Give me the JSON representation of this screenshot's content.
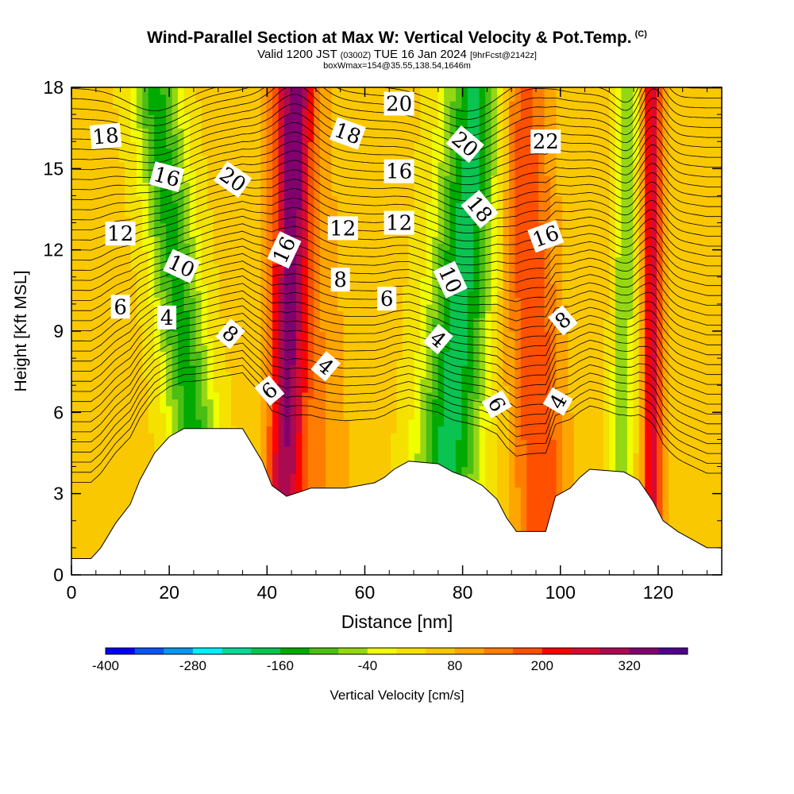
{
  "header": {
    "title": "Wind-Parallel Section at Max W: Vertical Velocity & Pot.Temp.",
    "copyright": "(C)",
    "valid_prefix": "Valid 1200 JST",
    "valid_utc": "(0300Z)",
    "valid_date": "TUE 16 Jan 2024",
    "forecast_info": "[9hrFcst@2142z]",
    "box_info": "boxWmax=154@35.55,138.54,1646m"
  },
  "chart_data": {
    "type": "heatmap",
    "xlabel": "Distance [nm]",
    "ylabel": "Height [Kft MSL]",
    "xlim": [
      0,
      133
    ],
    "ylim": [
      0,
      18
    ],
    "x_ticks": [
      "0",
      "20",
      "40",
      "60",
      "80",
      "100",
      "120"
    ],
    "y_ticks": [
      "0",
      "3",
      "6",
      "9",
      "12",
      "15",
      "18"
    ],
    "colorbar": {
      "label": "Vertical Velocity [cm/s]",
      "tick_labels": [
        "-400",
        "-280",
        "-160",
        "-40",
        "80",
        "200",
        "320"
      ],
      "tick_values": [
        -400,
        -280,
        -160,
        -40,
        80,
        200,
        320
      ],
      "bins": [
        -400,
        -360,
        -320,
        -280,
        -240,
        -200,
        -160,
        -120,
        -80,
        -40,
        0,
        40,
        80,
        120,
        160,
        200,
        240,
        280,
        320,
        360
      ],
      "colors": [
        "#0000ff",
        "#0a55f0",
        "#0a96f0",
        "#00f0ff",
        "#0ad796",
        "#0ac350",
        "#00aa00",
        "#4bbe14",
        "#96d714",
        "#f0ff00",
        "#f5e100",
        "#fac800",
        "#ffa500",
        "#ff7d00",
        "#ff5000",
        "#ff0000",
        "#d70a32",
        "#aa0a50",
        "#82006e",
        "#50008c"
      ]
    },
    "terrain_kft": [
      [
        0,
        0.6
      ],
      [
        4,
        0.6
      ],
      [
        6,
        1.0
      ],
      [
        9,
        1.9
      ],
      [
        12,
        2.6
      ],
      [
        14,
        3.5
      ],
      [
        17,
        4.5
      ],
      [
        20,
        5.1
      ],
      [
        23,
        5.4
      ],
      [
        35,
        5.4
      ],
      [
        37,
        4.8
      ],
      [
        39,
        4.2
      ],
      [
        41,
        3.3
      ],
      [
        44,
        2.9
      ],
      [
        49,
        3.2
      ],
      [
        56,
        3.2
      ],
      [
        62,
        3.4
      ],
      [
        64,
        3.6
      ],
      [
        66,
        3.9
      ],
      [
        69,
        4.2
      ],
      [
        75,
        4.1
      ],
      [
        78,
        3.8
      ],
      [
        81,
        3.6
      ],
      [
        84,
        3.3
      ],
      [
        87,
        2.8
      ],
      [
        89,
        2.1
      ],
      [
        91,
        1.6
      ],
      [
        97,
        1.6
      ],
      [
        99,
        2.9
      ],
      [
        102,
        3.2
      ],
      [
        104,
        3.6
      ],
      [
        106,
        3.9
      ],
      [
        113,
        3.8
      ],
      [
        116,
        3.5
      ],
      [
        119,
        2.7
      ],
      [
        121,
        2.0
      ],
      [
        124,
        1.6
      ],
      [
        127,
        1.3
      ],
      [
        130,
        1.0
      ],
      [
        133,
        1.0
      ]
    ],
    "vertical_velocity_features": [
      {
        "name": "descent",
        "x_base": 28,
        "tilt": -0.6,
        "width": 5,
        "amp": -185
      },
      {
        "name": "ascent",
        "x_base": 43,
        "tilt": 0.15,
        "width": 3.5,
        "amp": 230
      },
      {
        "name": "ascent",
        "x_base": 51,
        "tilt": -0.3,
        "width": 7,
        "amp": 80
      },
      {
        "name": "descent",
        "x_base": 75,
        "tilt": 0.45,
        "width": 6.5,
        "amp": -230
      },
      {
        "name": "ascent",
        "x_base": 97,
        "tilt": -0.3,
        "width": 5.5,
        "amp": 150
      },
      {
        "name": "descent",
        "x_base": 112,
        "tilt": 0.1,
        "width": 2.2,
        "amp": -130
      },
      {
        "name": "ascent",
        "x_base": 119,
        "tilt": 0.0,
        "width": 2.0,
        "amp": 220
      }
    ],
    "potential_temperature_labels": [
      {
        "text": "18",
        "x": 7,
        "y": 16.2,
        "rot": -5
      },
      {
        "text": "16",
        "x": 19.5,
        "y": 14.7,
        "rot": 15
      },
      {
        "text": "20",
        "x": 33,
        "y": 14.6,
        "rot": 35
      },
      {
        "text": "12",
        "x": 10,
        "y": 12.6,
        "rot": 0
      },
      {
        "text": "10",
        "x": 22.5,
        "y": 11.4,
        "rot": 25
      },
      {
        "text": "6",
        "x": 10,
        "y": 9.9,
        "rot": 0
      },
      {
        "text": "4",
        "x": 19.5,
        "y": 9.5,
        "rot": 0
      },
      {
        "text": "8",
        "x": 32.5,
        "y": 8.9,
        "rot": 40
      },
      {
        "text": "6",
        "x": 40.5,
        "y": 6.8,
        "rot": -40
      },
      {
        "text": "16",
        "x": 43.5,
        "y": 12.0,
        "rot": -65
      },
      {
        "text": "4",
        "x": 52,
        "y": 7.7,
        "rot": 40
      },
      {
        "text": "8",
        "x": 55,
        "y": 10.9,
        "rot": 0
      },
      {
        "text": "12",
        "x": 55.5,
        "y": 12.8,
        "rot": 0
      },
      {
        "text": "18",
        "x": 56.5,
        "y": 16.3,
        "rot": 20
      },
      {
        "text": "20",
        "x": 67,
        "y": 17.4,
        "rot": 0
      },
      {
        "text": "16",
        "x": 67,
        "y": 14.9,
        "rot": 0
      },
      {
        "text": "12",
        "x": 67,
        "y": 13.0,
        "rot": 0
      },
      {
        "text": "6",
        "x": 64.5,
        "y": 10.2,
        "rot": 0
      },
      {
        "text": "4",
        "x": 75,
        "y": 8.7,
        "rot": 40
      },
      {
        "text": "10",
        "x": 77.5,
        "y": 10.9,
        "rot": 65
      },
      {
        "text": "20",
        "x": 80.5,
        "y": 15.9,
        "rot": 40
      },
      {
        "text": "18",
        "x": 83.5,
        "y": 13.5,
        "rot": 50
      },
      {
        "text": "6",
        "x": 87,
        "y": 6.3,
        "rot": 60
      },
      {
        "text": "22",
        "x": 97,
        "y": 16.0,
        "rot": 0
      },
      {
        "text": "16",
        "x": 97,
        "y": 12.5,
        "rot": -20
      },
      {
        "text": "8",
        "x": 100.5,
        "y": 9.4,
        "rot": -40
      },
      {
        "text": "4",
        "x": 99.5,
        "y": 6.4,
        "rot": -60
      }
    ]
  }
}
